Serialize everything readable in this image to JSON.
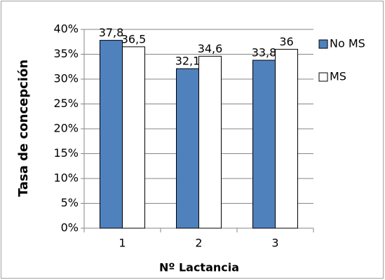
{
  "chart_data": {
    "type": "bar",
    "x_label": "Nº Lactancia",
    "y_label": "Tasa de concepción",
    "categories": [
      "1",
      "2",
      "3"
    ],
    "series": [
      {
        "name": "No MS",
        "color": "#4f81bd",
        "values": [
          37.8,
          32.1,
          33.8
        ],
        "value_labels": [
          "37,8",
          "32,1",
          "33,8"
        ]
      },
      {
        "name": "MS",
        "color": "#ffffff",
        "values": [
          36.5,
          34.6,
          36
        ],
        "value_labels": [
          "36,5",
          "34,6",
          "36"
        ]
      }
    ],
    "ylim": [
      0,
      40
    ],
    "yticks": [
      {
        "value": 0,
        "label": "0%"
      },
      {
        "value": 5,
        "label": "5%"
      },
      {
        "value": 10,
        "label": "10%"
      },
      {
        "value": 15,
        "label": "15%"
      },
      {
        "value": 20,
        "label": "20%"
      },
      {
        "value": 25,
        "label": "25%"
      },
      {
        "value": 30,
        "label": "30%"
      },
      {
        "value": 35,
        "label": "35%"
      },
      {
        "value": 40,
        "label": "40%"
      }
    ],
    "grid": true
  }
}
